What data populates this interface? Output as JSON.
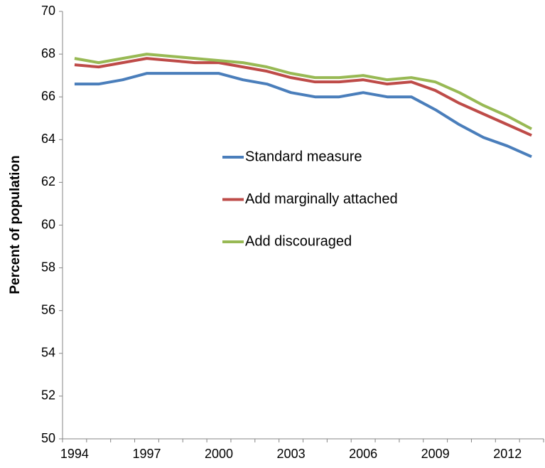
{
  "chart_data": {
    "type": "line",
    "y_label": "Percent of population",
    "categories": [
      "1994",
      null,
      null,
      "1997",
      null,
      null,
      "2000",
      null,
      null,
      "2003",
      null,
      null,
      "2006",
      null,
      null,
      "2009",
      null,
      null,
      "2012",
      null
    ],
    "series": [
      {
        "name": "Standard measure",
        "color": "#4a7ebb",
        "values": [
          66.6,
          66.6,
          66.8,
          67.1,
          67.1,
          67.1,
          67.1,
          66.8,
          66.6,
          66.2,
          66.0,
          66.0,
          66.2,
          66.0,
          66.0,
          65.4,
          64.7,
          64.1,
          63.7,
          63.2
        ]
      },
      {
        "name": "Add marginally attached",
        "color": "#be4b48",
        "values": [
          67.5,
          67.4,
          67.6,
          67.8,
          67.7,
          67.6,
          67.6,
          67.4,
          67.2,
          66.9,
          66.7,
          66.7,
          66.8,
          66.6,
          66.7,
          66.3,
          65.7,
          65.2,
          64.7,
          64.2
        ]
      },
      {
        "name": "Add discouraged",
        "color": "#98b954",
        "values": [
          67.8,
          67.6,
          67.8,
          68.0,
          67.9,
          67.8,
          67.7,
          67.6,
          67.4,
          67.1,
          66.9,
          66.9,
          67.0,
          66.8,
          66.9,
          66.7,
          66.2,
          65.6,
          65.1,
          64.5
        ]
      }
    ],
    "ylim": [
      50,
      70
    ],
    "yticks": [
      50,
      52,
      54,
      56,
      58,
      60,
      62,
      64,
      66,
      68,
      70
    ],
    "grid": false
  }
}
